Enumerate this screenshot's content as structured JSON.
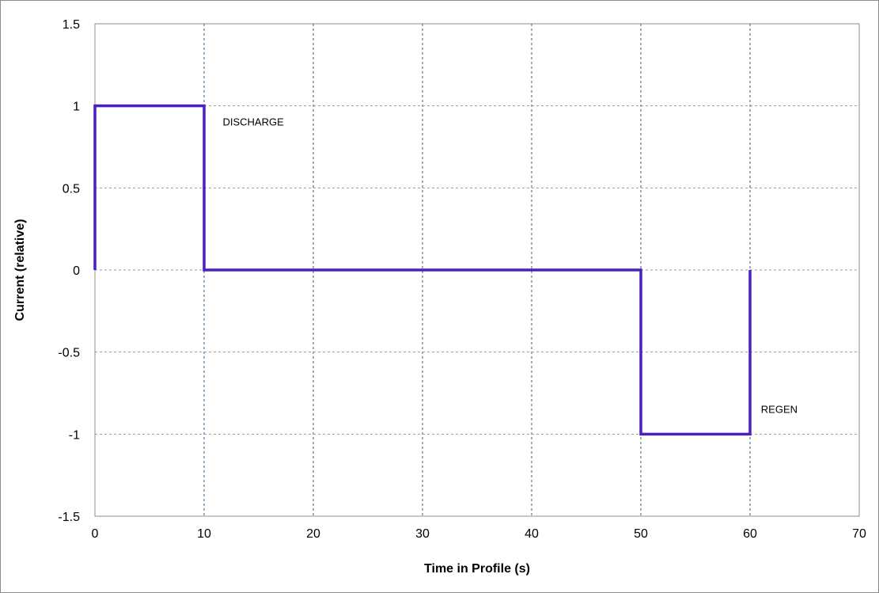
{
  "chart_data": {
    "type": "line",
    "title": "",
    "xlabel": "Time in Profile (s)",
    "ylabel": "Current (relative)",
    "xlim": [
      0,
      70
    ],
    "ylim": [
      -1.5,
      1.5
    ],
    "xticks": [
      0,
      10,
      20,
      30,
      40,
      50,
      60,
      70
    ],
    "yticks": [
      1.5,
      1,
      0.5,
      0,
      -0.5,
      -1,
      -1.5
    ],
    "xtick_labels": [
      "0",
      "10",
      "20",
      "30",
      "40",
      "50",
      "60",
      "70"
    ],
    "ytick_labels": [
      "1.5",
      "1",
      "0.5",
      "0",
      "-0.5",
      "-1",
      "-1.5"
    ],
    "grid": true,
    "grid_style": "dashed",
    "legend": "none",
    "series": [
      {
        "color": "#4b1fc0",
        "x": [
          0,
          0,
          10,
          10,
          50,
          50,
          60,
          60
        ],
        "y": [
          0,
          1,
          1,
          0,
          0,
          -1,
          -1,
          0
        ]
      }
    ],
    "annotations": [
      {
        "text": "DISCHARGE",
        "x": 11.7,
        "y": 0.88
      },
      {
        "text": "REGEN",
        "x": 61,
        "y": -0.87
      }
    ]
  }
}
